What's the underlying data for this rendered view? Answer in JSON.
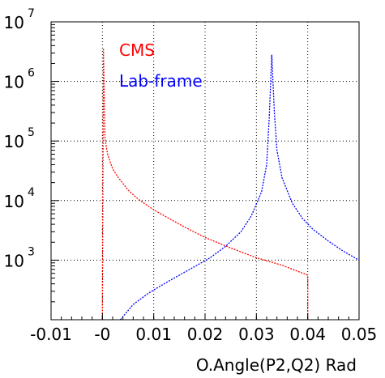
{
  "chart_data": {
    "type": "line",
    "title": "",
    "xlabel": "O.Angle(P2,Q2) Rad",
    "ylabel": "",
    "xlim": [
      -0.01,
      0.05
    ],
    "ylim": [
      100,
      10000000
    ],
    "y_scale": "log",
    "grid": true,
    "legend_position": "top-left",
    "x_ticks": [
      {
        "value": -0.01,
        "label": "-0.01"
      },
      {
        "value": 0.0,
        "label": "-0"
      },
      {
        "value": 0.01,
        "label": "0.01"
      },
      {
        "value": 0.02,
        "label": "0.02"
      },
      {
        "value": 0.03,
        "label": "0.03"
      },
      {
        "value": 0.04,
        "label": "0.04"
      },
      {
        "value": 0.05,
        "label": "0.05"
      }
    ],
    "y_ticks": [
      {
        "value": 1000,
        "base": "10",
        "exp": "3"
      },
      {
        "value": 10000,
        "base": "10",
        "exp": "4"
      },
      {
        "value": 100000,
        "base": "10",
        "exp": "5"
      },
      {
        "value": 1000000,
        "base": "10",
        "exp": "6"
      },
      {
        "value": 10000000,
        "base": "10",
        "exp": "7"
      }
    ],
    "series": [
      {
        "name": "CMS",
        "color": "#ff0000",
        "x": [
          0.0,
          0.0002,
          0.0005,
          0.001,
          0.002,
          0.003,
          0.005,
          0.007,
          0.01,
          0.013,
          0.016,
          0.02,
          0.025,
          0.03,
          0.035,
          0.04,
          0.04
        ],
        "y": [
          100,
          3600000,
          110000,
          60000,
          34000,
          25000,
          15000,
          10500,
          7000,
          5000,
          3600,
          2400,
          1600,
          1100,
          820,
          560,
          100
        ]
      },
      {
        "name": "Lab-frame",
        "color": "#0000ff",
        "x": [
          0.0035,
          0.006,
          0.009,
          0.012,
          0.015,
          0.018,
          0.021,
          0.024,
          0.027,
          0.029,
          0.031,
          0.032,
          0.0325,
          0.033,
          0.0335,
          0.034,
          0.035,
          0.037,
          0.039,
          0.041,
          0.044,
          0.047,
          0.05
        ],
        "y": [
          100,
          180,
          280,
          400,
          560,
          780,
          1100,
          1700,
          3000,
          5500,
          14000,
          40000,
          250000,
          2800000,
          300000,
          70000,
          24000,
          9000,
          5000,
          3300,
          2100,
          1400,
          1000
        ]
      }
    ]
  }
}
